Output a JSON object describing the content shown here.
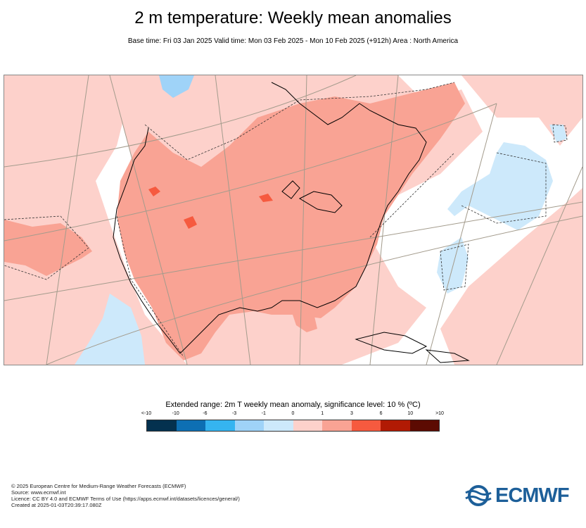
{
  "header": {
    "title": "2 m temperature: Weekly mean anomalies",
    "subtitle": "Base time: Fri 03 Jan 2025 Valid time: Mon 03 Feb 2025 - Mon 10 Feb 2025 (+912h) Area : North America"
  },
  "map": {
    "region": "North America",
    "colors": {
      "warm_1_3": "#f9a394",
      "warm_0_1": "#fdd1cb",
      "warm_3_6": "#f65a3f",
      "cold_0_1": "#cde9fb",
      "cold_1_3": "#9fd3f8",
      "neutral": "#ffffff",
      "coastline": "#000000",
      "graticule": "#a39b8c"
    }
  },
  "legend": {
    "title": "Extended range: 2m T weekly mean anomaly, significance level: 10 % (ºC)",
    "ticks": [
      "<-10",
      "-10",
      "-6",
      "-3",
      "-1",
      "0",
      "1",
      "3",
      "6",
      "10",
      ">10"
    ],
    "colors": [
      "#04314f",
      "#0d6fb3",
      "#35b4f0",
      "#9fd3f8",
      "#cde9fb",
      "#fdd1cb",
      "#f9a394",
      "#f65a3f",
      "#b11a04",
      "#5c0b02"
    ]
  },
  "footer": {
    "line1": "© 2025 European Centre for Medium-Range Weather Forecasts (ECMWF)",
    "line2": "Source: www.ecmwf.int",
    "line3": "Licence: CC BY 4.0 and ECMWF Terms of Use (https://apps.ecmwf.int/datasets/licences/general/)",
    "line4": "Created at 2025-01-03T20:39:17.080Z"
  },
  "logo": {
    "text": "ECMWF"
  }
}
